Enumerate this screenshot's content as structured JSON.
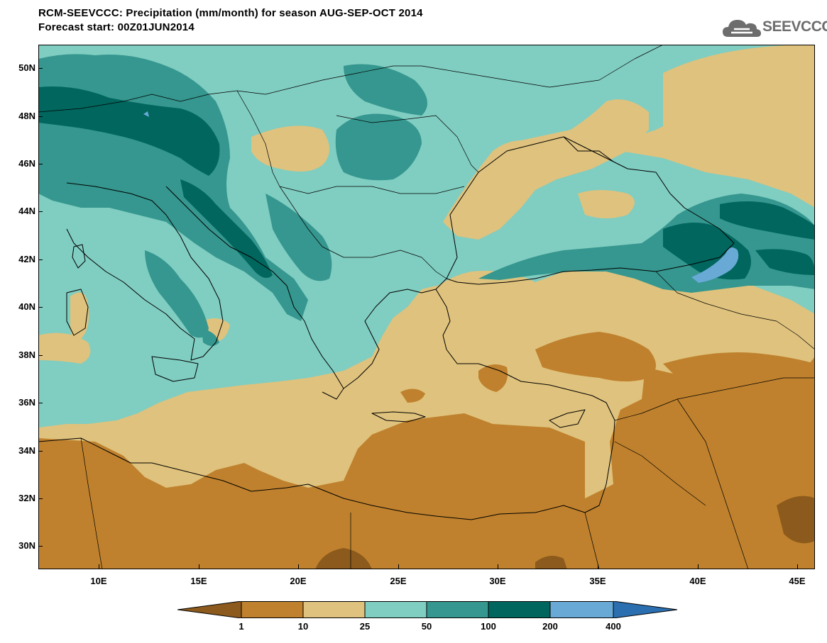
{
  "header": {
    "title_line1": "RCM-SEEVCCC: Precipitation (mm/month) for season AUG-SEP-OCT 2014",
    "title_line2": "Forecast start: 00Z01JUN2014"
  },
  "logo": {
    "text": "SEEVCCC",
    "icon": "cloud-icon"
  },
  "map": {
    "lat_labels": [
      "50N",
      "48N",
      "46N",
      "44N",
      "42N",
      "40N",
      "38N",
      "36N",
      "34N",
      "32N",
      "30N"
    ],
    "lon_labels": [
      "10E",
      "15E",
      "20E",
      "25E",
      "30E",
      "35E",
      "40E",
      "45E"
    ]
  },
  "colorbar": {
    "labels": [
      "1",
      "10",
      "25",
      "50",
      "100",
      "200",
      "400"
    ],
    "colors": [
      "#8c5a1c",
      "#bf812d",
      "#dfc27d",
      "#80cdc1",
      "#35978f",
      "#01665e",
      "#69a9d6",
      "#2b6fb0"
    ]
  },
  "palette": {
    "very_dry": "#8c5a1c",
    "dry": "#bf812d",
    "light": "#dfc27d",
    "moist": "#80cdc1",
    "wet": "#35978f",
    "very_wet": "#01665e",
    "extreme": "#69a9d6"
  }
}
